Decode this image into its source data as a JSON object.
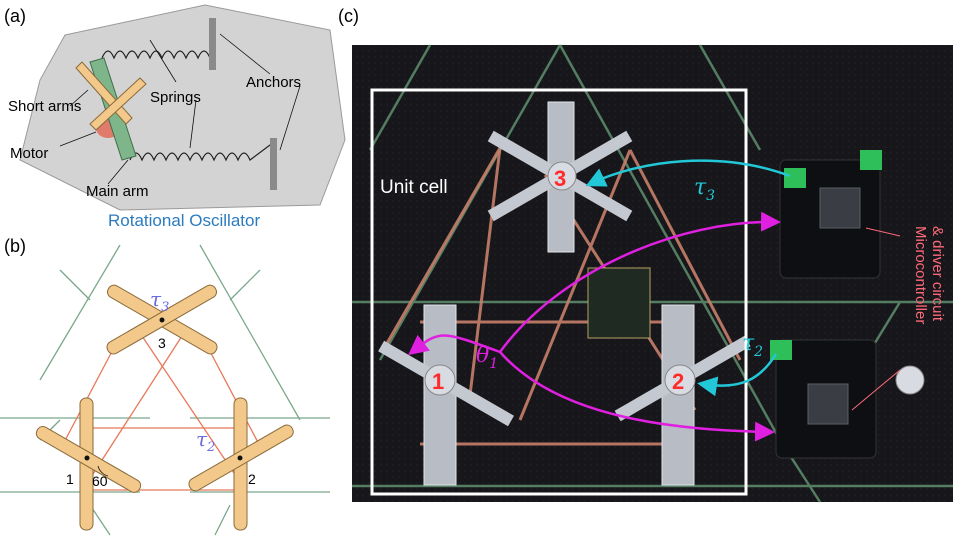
{
  "panel_a": {
    "tag": "(a)",
    "labels": {
      "short_arms": "Short arms",
      "springs": "Springs",
      "anchors": "Anchors",
      "motor": "Motor",
      "main_arm": "Main arm"
    },
    "caption": "Rotational Oscillator",
    "caption_color": "#2b7bbf"
  },
  "panel_b": {
    "tag": "(b)",
    "tau3": "τ",
    "tau3_sub": "3",
    "tau2": "τ",
    "tau2_sub": "2",
    "node1": "1",
    "node2": "2",
    "node3": "3",
    "angle": "60"
  },
  "panel_c": {
    "tag": "(c)",
    "unit_cell": "Unit cell",
    "tau3": "τ",
    "tau3_sub": "3",
    "tau2": "τ",
    "tau2_sub": "2",
    "theta": "θ",
    "theta_sub": "1",
    "num1": "1",
    "num2": "2",
    "num3": "3",
    "mcu_line1": "Microcontroller",
    "mcu_line2": "& driver circuit"
  },
  "colors": {
    "arm": "#f2c98a",
    "arm_stroke": "#8a6a3a",
    "spring_line": "#e8785a",
    "green_line": "#7aa88a",
    "tau_color": "#6b6be0",
    "cyan": "#22c8d8",
    "magenta": "#e020e0",
    "red_num": "#ff2a2a",
    "photo_bg": "#16161a"
  }
}
